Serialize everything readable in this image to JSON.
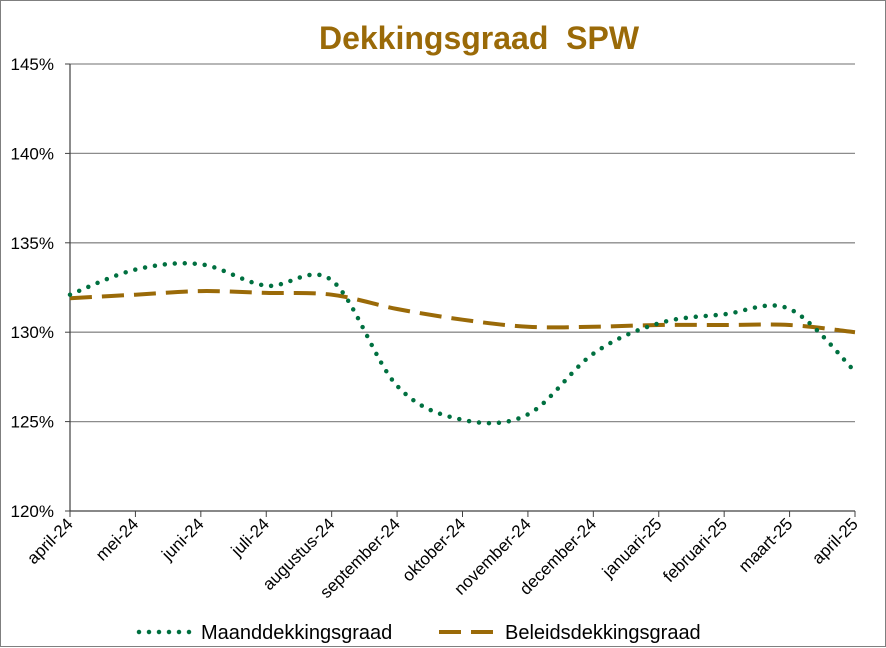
{
  "chart_data": {
    "type": "line",
    "title": "Dekkingsgraad  SPW",
    "xlabel": "",
    "ylabel": "",
    "categories": [
      "april-24",
      "mei-24",
      "juni-24",
      "juli-24",
      "augustus-24",
      "september-24",
      "oktober-24",
      "november-24",
      "december-24",
      "januari-25",
      "februari-25",
      "maart-25",
      "april-25"
    ],
    "y_ticks": [
      "120%",
      "125%",
      "130%",
      "135%",
      "140%",
      "145%"
    ],
    "ylim": [
      120,
      145
    ],
    "grid": "horizontal",
    "legend_position": "bottom",
    "series": [
      {
        "name": "Maanddekkingsgraad",
        "style": "dotted",
        "color": "#007040",
        "values": [
          132.1,
          133.5,
          133.8,
          132.6,
          132.9,
          127.0,
          125.1,
          125.4,
          128.8,
          130.5,
          131.0,
          131.3,
          127.8
        ]
      },
      {
        "name": "Beleidsdekkingsgraad",
        "style": "dashed",
        "color": "#9a6a08",
        "values": [
          131.9,
          132.1,
          132.3,
          132.2,
          132.1,
          131.3,
          130.7,
          130.3,
          130.3,
          130.4,
          130.4,
          130.4,
          130.0
        ]
      }
    ]
  }
}
